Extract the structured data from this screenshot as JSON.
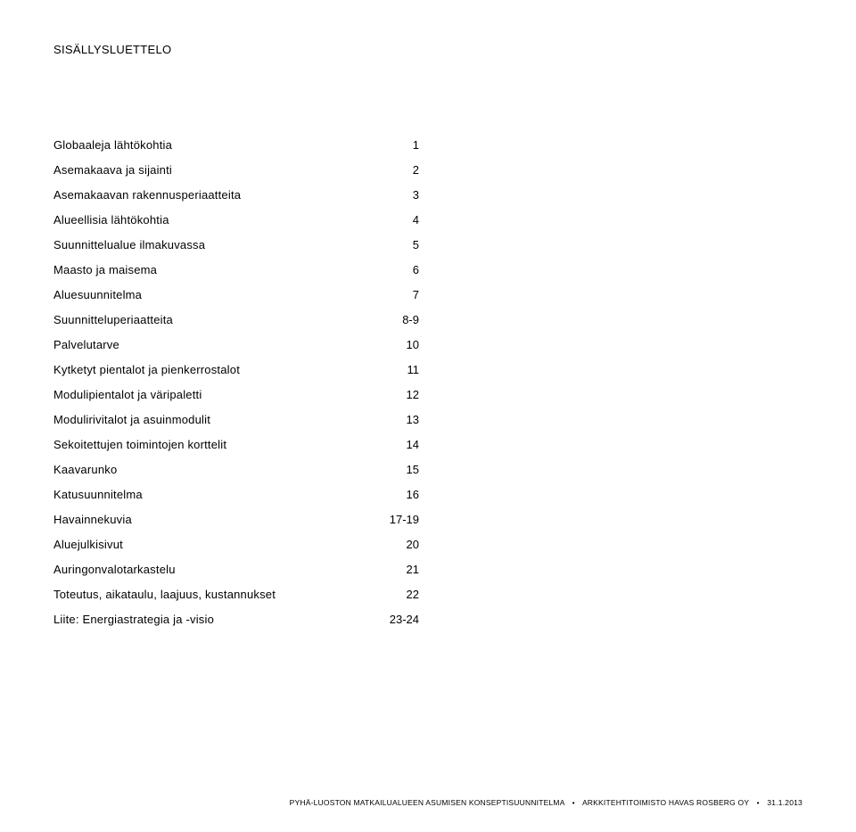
{
  "title": "SISÄLLYSLUETTELO",
  "toc": [
    {
      "label": "Globaaleja lähtökohtia",
      "page": "1"
    },
    {
      "label": "Asemakaava ja sijainti",
      "page": "2"
    },
    {
      "label": "Asemakaavan rakennusperiaatteita",
      "page": "3"
    },
    {
      "label": "Alueellisia lähtökohtia",
      "page": "4"
    },
    {
      "label": "Suunnittelualue ilmakuvassa",
      "page": "5"
    },
    {
      "label": "Maasto ja maisema",
      "page": "6"
    },
    {
      "label": "Aluesuunnitelma",
      "page": "7"
    },
    {
      "label": "Suunnitteluperiaatteita",
      "page": "8-9"
    },
    {
      "label": "Palvelutarve",
      "page": "10"
    },
    {
      "label": "Kytketyt pientalot ja pienkerrostalot",
      "page": "11"
    },
    {
      "label": "Modulipientalot ja väripaletti",
      "page": "12"
    },
    {
      "label": "Modulirivitalot ja asuinmodulit",
      "page": "13"
    },
    {
      "label": "Sekoitettujen toimintojen korttelit",
      "page": "14"
    },
    {
      "label": "Kaavarunko",
      "page": "15"
    },
    {
      "label": "Katusuunnitelma",
      "page": "16"
    },
    {
      "label": "Havainnekuvia",
      "page": "17-19"
    },
    {
      "label": "Aluejulkisivut",
      "page": "20"
    },
    {
      "label": "Auringonvalotarkastelu",
      "page": "21"
    },
    {
      "label": "Toteutus, aikataulu, laajuus, kustannukset",
      "page": "22"
    },
    {
      "label": "Liite: Energiastrategia ja -visio",
      "page": "23-24"
    }
  ],
  "footer": {
    "part1": "PYHÄ-LUOSTON MATKAILUALUEEN ASUMISEN KONSEPTISUUNNITELMA",
    "part2": "ARKKITEHTITOIMISTO HAVAS ROSBERG OY",
    "part3": "31.1.2013"
  }
}
